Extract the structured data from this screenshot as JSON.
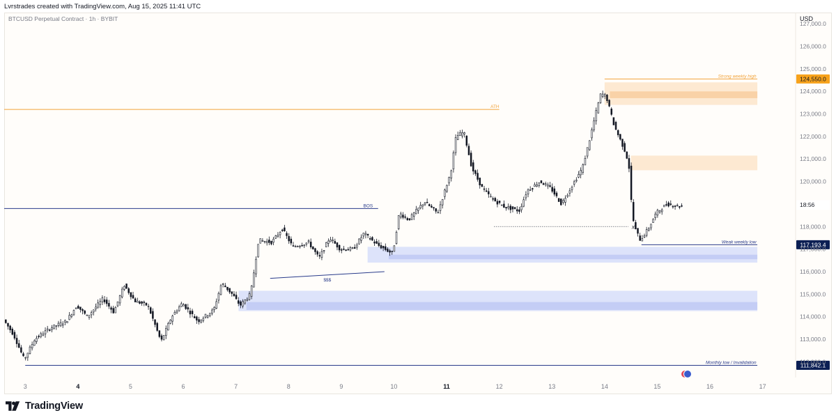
{
  "header": {
    "credit": "Lvrstrades created with TradingView.com, Aug 15, 2025 11:41 UTC"
  },
  "footer": {
    "brand": "TradingView"
  },
  "chart_data": {
    "type": "candlestick",
    "title": "BTCUSD Perpetual Contract · 1h · BYBIT",
    "currency": "USD",
    "y_range": [
      111300,
      127500
    ],
    "x_range": [
      2.6,
      17.6
    ],
    "y_ticks": [
      {
        "value": 112000,
        "label": "112,000.0"
      },
      {
        "value": 113000,
        "label": "113,000.0"
      },
      {
        "value": 114000,
        "label": "114,000.0"
      },
      {
        "value": 115000,
        "label": "115,000.0"
      },
      {
        "value": 116000,
        "label": "116,000.0"
      },
      {
        "value": 117000,
        "label": "117,000.0"
      },
      {
        "value": 118000,
        "label": "118,000.0"
      },
      {
        "value": 119000,
        "label": "119,000.0"
      },
      {
        "value": 120000,
        "label": "120,000.0"
      },
      {
        "value": 121000,
        "label": "121,000.0"
      },
      {
        "value": 122000,
        "label": "122,000.0"
      },
      {
        "value": 123000,
        "label": "123,000.0"
      },
      {
        "value": 124000,
        "label": "124,000.0"
      },
      {
        "value": 125000,
        "label": "125,000.0"
      },
      {
        "value": 126000,
        "label": "126,000.0"
      },
      {
        "value": 127000,
        "label": "127,000.0"
      }
    ],
    "x_ticks": [
      {
        "value": 3,
        "label": "3",
        "bold": false
      },
      {
        "value": 4,
        "label": "4",
        "bold": true
      },
      {
        "value": 5,
        "label": "5",
        "bold": false
      },
      {
        "value": 6,
        "label": "6",
        "bold": false
      },
      {
        "value": 7,
        "label": "7",
        "bold": false
      },
      {
        "value": 8,
        "label": "8",
        "bold": false
      },
      {
        "value": 9,
        "label": "9",
        "bold": false
      },
      {
        "value": 10,
        "label": "10",
        "bold": false
      },
      {
        "value": 11,
        "label": "11",
        "bold": true
      },
      {
        "value": 12,
        "label": "12",
        "bold": false
      },
      {
        "value": 13,
        "label": "13",
        "bold": false
      },
      {
        "value": 14,
        "label": "14",
        "bold": false
      },
      {
        "value": 15,
        "label": "15",
        "bold": false
      },
      {
        "value": 16,
        "label": "16",
        "bold": false
      },
      {
        "value": 17,
        "label": "17",
        "bold": false
      }
    ],
    "price_path": [
      [
        2.6,
        113900
      ],
      [
        2.8,
        113200
      ],
      [
        3.0,
        112100
      ],
      [
        3.2,
        113000
      ],
      [
        3.5,
        113500
      ],
      [
        3.8,
        113800
      ],
      [
        4.0,
        114500
      ],
      [
        4.2,
        114000
      ],
      [
        4.5,
        114800
      ],
      [
        4.7,
        114200
      ],
      [
        4.9,
        115400
      ],
      [
        5.1,
        114700
      ],
      [
        5.35,
        114500
      ],
      [
        5.6,
        112900
      ],
      [
        5.8,
        114000
      ],
      [
        6.0,
        114600
      ],
      [
        6.3,
        113800
      ],
      [
        6.6,
        114300
      ],
      [
        6.75,
        115500
      ],
      [
        6.95,
        115000
      ],
      [
        7.1,
        114500
      ],
      [
        7.3,
        115000
      ],
      [
        7.45,
        117400
      ],
      [
        7.7,
        117300
      ],
      [
        7.9,
        117900
      ],
      [
        8.1,
        117100
      ],
      [
        8.4,
        117300
      ],
      [
        8.6,
        116600
      ],
      [
        8.8,
        117500
      ],
      [
        9.0,
        117000
      ],
      [
        9.25,
        117000
      ],
      [
        9.45,
        117700
      ],
      [
        9.7,
        117200
      ],
      [
        10.0,
        116800
      ],
      [
        10.12,
        118600
      ],
      [
        10.3,
        118300
      ],
      [
        10.6,
        119100
      ],
      [
        10.85,
        118600
      ],
      [
        11.1,
        120400
      ],
      [
        11.2,
        122000
      ],
      [
        11.35,
        122200
      ],
      [
        11.5,
        120600
      ],
      [
        11.7,
        119700
      ],
      [
        11.9,
        119200
      ],
      [
        12.1,
        118900
      ],
      [
        12.4,
        118700
      ],
      [
        12.55,
        119600
      ],
      [
        12.8,
        120000
      ],
      [
        13.0,
        119700
      ],
      [
        13.2,
        119000
      ],
      [
        13.4,
        119800
      ],
      [
        13.6,
        120600
      ],
      [
        13.75,
        122000
      ],
      [
        13.85,
        123000
      ],
      [
        13.95,
        123900
      ],
      [
        14.05,
        123800
      ],
      [
        14.2,
        122500
      ],
      [
        14.4,
        121400
      ],
      [
        14.48,
        120800
      ],
      [
        14.52,
        119300
      ],
      [
        14.58,
        118000
      ],
      [
        14.7,
        117400
      ],
      [
        14.85,
        117900
      ],
      [
        15.0,
        118600
      ],
      [
        15.2,
        119000
      ],
      [
        15.45,
        118900
      ]
    ],
    "zones": [
      {
        "id": "supply-top-light",
        "x0": 14.0,
        "x1": 16.9,
        "y0": 123400,
        "y1": 124400,
        "kind": "supply-light"
      },
      {
        "id": "supply-top-dark",
        "x0": 14.1,
        "x1": 16.9,
        "y0": 123700,
        "y1": 124000,
        "kind": "supply-dark"
      },
      {
        "id": "supply-mid",
        "x0": 14.5,
        "x1": 16.9,
        "y0": 120500,
        "y1": 121150,
        "kind": "supply-light"
      },
      {
        "id": "demand-upper",
        "x0": 9.5,
        "x1": 16.9,
        "y0": 116400,
        "y1": 117100,
        "kind": "demand-light"
      },
      {
        "id": "demand-upper-dark",
        "x0": 9.9,
        "x1": 16.9,
        "y0": 116550,
        "y1": 116750,
        "kind": "demand-dark"
      },
      {
        "id": "demand-lower",
        "x0": 7.05,
        "x1": 16.9,
        "y0": 114250,
        "y1": 115150,
        "kind": "demand-light"
      },
      {
        "id": "demand-lower-dark",
        "x0": 7.2,
        "x1": 16.9,
        "y0": 114300,
        "y1": 114650,
        "kind": "demand-dark"
      }
    ],
    "levels": [
      {
        "id": "ath",
        "label": "ATH",
        "value": 123200,
        "x0": 2.6,
        "x1": 12.0,
        "color": "#f2a33a",
        "label_x": 12.0
      },
      {
        "id": "bos",
        "label": "BOS",
        "value": 118800,
        "x0": 2.6,
        "x1": 9.7,
        "color": "#283a8a",
        "label_x": 9.6
      },
      {
        "id": "strong-weekly-high",
        "label": "Strong weekly high",
        "value": 124550,
        "x0": 14.0,
        "x1": 16.9,
        "color": "#f2a33a",
        "label_x": 16.88,
        "badge": "124,550.0",
        "badge_bg": "#f7a21b",
        "badge_fg": "#131722"
      },
      {
        "id": "weak-weekly-low",
        "label": "Weak weekly low",
        "value": 117193.4,
        "x0": 14.7,
        "x1": 16.9,
        "color": "#283a8a",
        "label_x": 16.88,
        "badge": "117,193.4",
        "badge_bg": "#0c1f54",
        "badge_fg": "#ffffff"
      },
      {
        "id": "monthly-low",
        "label": "Monthly low / Invalidation",
        "value": 111842.1,
        "x0": 3.0,
        "x1": 16.9,
        "color": "#283a8a",
        "label_x": 16.88,
        "badge": "111,842.1",
        "badge_bg": "#0c1f54",
        "badge_fg": "#ffffff"
      }
    ],
    "liquidity_line": {
      "label": "$$$",
      "x0": 7.65,
      "y0": 115700,
      "x1": 9.82,
      "y1": 116000,
      "color": "#283a8a"
    },
    "dotted_low": {
      "x0": 11.9,
      "x1": 14.45,
      "value": 118000,
      "marker": "x"
    },
    "countdown": {
      "label": "18:56",
      "value": 118960
    },
    "flag_x": 15.55
  }
}
